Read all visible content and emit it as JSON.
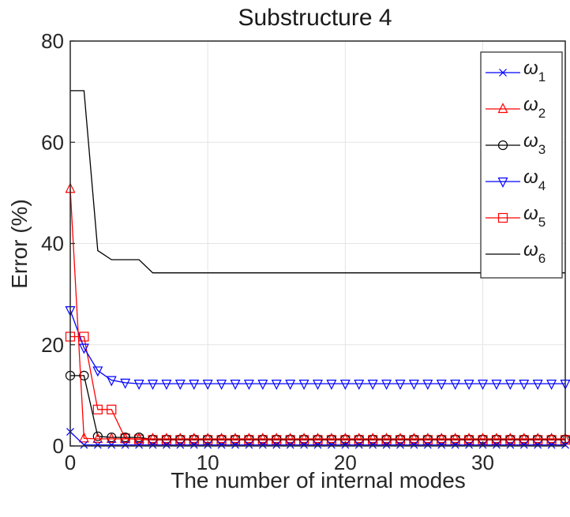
{
  "chart_data": {
    "type": "line",
    "title": "Substructure 4",
    "xlabel": "The number of internal modes",
    "ylabel": "Error (%)",
    "xlim": [
      0,
      36
    ],
    "ylim": [
      0,
      80
    ],
    "xticks": [
      0,
      10,
      20,
      30
    ],
    "yticks": [
      0,
      20,
      40,
      60,
      80
    ],
    "grid": true,
    "legend_position": "top-right",
    "x": [
      0,
      1,
      2,
      3,
      4,
      5,
      6,
      7,
      8,
      9,
      10,
      11,
      12,
      13,
      14,
      15,
      16,
      17,
      18,
      19,
      20,
      21,
      22,
      23,
      24,
      25,
      26,
      27,
      28,
      29,
      30,
      31,
      32,
      33,
      34,
      35,
      36
    ],
    "series": [
      {
        "symbol": "ω",
        "subscript": "1",
        "color": "#0000ff",
        "marker": "x",
        "values": [
          2.8,
          0.2,
          0.2,
          0.2,
          0.2,
          0.2,
          0.2,
          0.2,
          0.2,
          0.2,
          0.2,
          0.2,
          0.2,
          0.2,
          0.2,
          0.2,
          0.2,
          0.2,
          0.2,
          0.2,
          0.2,
          0.2,
          0.2,
          0.2,
          0.2,
          0.2,
          0.2,
          0.2,
          0.2,
          0.2,
          0.2,
          0.2,
          0.2,
          0.2,
          0.2,
          0.2,
          0.2
        ]
      },
      {
        "symbol": "ω",
        "subscript": "2",
        "color": "#ff0000",
        "marker": "triangle-up",
        "values": [
          50.8,
          1.5,
          1.4,
          1.4,
          1.4,
          1.4,
          1.4,
          1.4,
          1.4,
          1.4,
          1.4,
          1.4,
          1.4,
          1.4,
          1.4,
          1.4,
          1.4,
          1.4,
          1.4,
          1.4,
          1.4,
          1.4,
          1.4,
          1.4,
          1.4,
          1.4,
          1.4,
          1.4,
          1.4,
          1.4,
          1.4,
          1.4,
          1.4,
          1.4,
          1.4,
          1.4,
          1.4
        ]
      },
      {
        "symbol": "ω",
        "subscript": "3",
        "color": "#000000",
        "marker": "circle",
        "values": [
          13.9,
          13.9,
          1.9,
          1.7,
          1.7,
          1.7,
          1.3,
          1.3,
          1.3,
          1.3,
          1.3,
          1.3,
          1.3,
          1.3,
          1.3,
          1.3,
          1.3,
          1.3,
          1.3,
          1.3,
          1.3,
          1.3,
          1.3,
          1.3,
          1.3,
          1.3,
          1.3,
          1.3,
          1.3,
          1.3,
          1.3,
          1.3,
          1.3,
          1.3,
          1.3,
          1.3,
          1.3
        ]
      },
      {
        "symbol": "ω",
        "subscript": "4",
        "color": "#0000ff",
        "marker": "triangle-down",
        "values": [
          26.8,
          19.4,
          14.9,
          13.0,
          12.5,
          12.3,
          12.3,
          12.3,
          12.3,
          12.3,
          12.3,
          12.3,
          12.3,
          12.3,
          12.3,
          12.3,
          12.3,
          12.3,
          12.3,
          12.3,
          12.3,
          12.3,
          12.3,
          12.3,
          12.3,
          12.3,
          12.3,
          12.3,
          12.3,
          12.3,
          12.3,
          12.3,
          12.3,
          12.3,
          12.3,
          12.3,
          12.3
        ]
      },
      {
        "symbol": "ω",
        "subscript": "5",
        "color": "#ff0000",
        "marker": "square",
        "values": [
          21.6,
          21.6,
          7.2,
          7.2,
          1.5,
          1.3,
          1.2,
          1.2,
          1.2,
          1.2,
          1.2,
          1.2,
          1.2,
          1.2,
          1.2,
          1.2,
          1.2,
          1.2,
          1.2,
          1.2,
          1.2,
          1.2,
          1.2,
          1.2,
          1.2,
          1.2,
          1.2,
          1.2,
          1.2,
          1.2,
          1.2,
          1.2,
          1.2,
          1.2,
          1.2,
          1.2,
          1.2
        ]
      },
      {
        "symbol": "ω",
        "subscript": "6",
        "color": "#000000",
        "marker": "none",
        "values": [
          70.2,
          70.2,
          38.6,
          36.8,
          36.8,
          36.8,
          34.2,
          34.2,
          34.2,
          34.2,
          34.2,
          34.2,
          34.2,
          34.2,
          34.2,
          34.2,
          34.2,
          34.2,
          34.2,
          34.2,
          34.2,
          34.2,
          34.2,
          34.2,
          34.2,
          34.2,
          34.2,
          34.2,
          34.2,
          34.2,
          34.2,
          34.2,
          34.2,
          34.2,
          34.2,
          34.2,
          34.2
        ]
      }
    ]
  }
}
